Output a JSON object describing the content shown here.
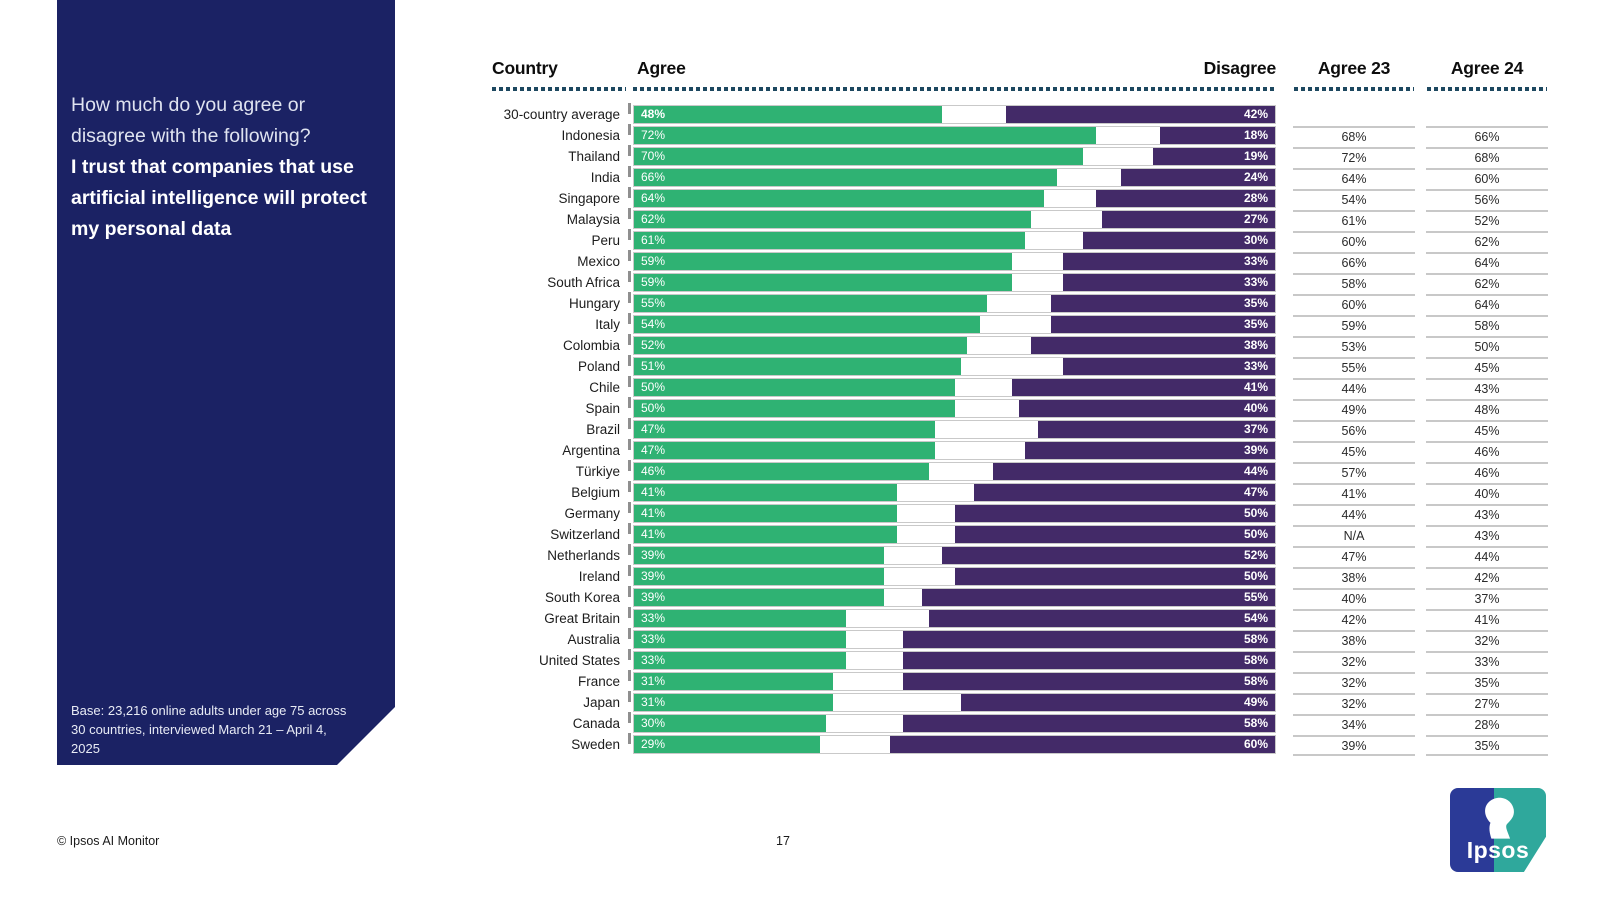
{
  "sidebar": {
    "question_intro": "How much do you agree or disagree with the following?",
    "question_bold": "I trust that companies that use artificial intelligence will protect my personal data",
    "base_note": "Base: 23,216 online adults under age 75 across 30 countries, interviewed March 21 – April 4, 2025"
  },
  "footer": {
    "copyright": "© Ipsos AI Monitor",
    "page_number": "17",
    "logo_text": "Ipsos"
  },
  "table_headers": {
    "country": "Country",
    "agree": "Agree",
    "disagree": "Disagree",
    "agree23": "Agree 23",
    "agree24": "Agree 24"
  },
  "colors": {
    "agree_green": "#2fb273",
    "disagree_purple": "#432a68",
    "sidebar_navy": "#1b2264"
  },
  "chart_data": {
    "type": "bar",
    "orientation": "horizontal-diverging",
    "title": "I trust that companies that use artificial intelligence will protect my personal data",
    "subtitle": "How much do you agree or disagree with the following?",
    "xlim": [
      0,
      100
    ],
    "units": "%",
    "legend_position": "column-headers",
    "categories": [
      "30-country average",
      "Indonesia",
      "Thailand",
      "India",
      "Singapore",
      "Malaysia",
      "Peru",
      "Mexico",
      "South Africa",
      "Hungary",
      "Italy",
      "Colombia",
      "Poland",
      "Chile",
      "Spain",
      "Brazil",
      "Argentina",
      "Türkiye",
      "Belgium",
      "Germany",
      "Switzerland",
      "Netherlands",
      "Ireland",
      "South Korea",
      "Great Britain",
      "Australia",
      "United States",
      "France",
      "Japan",
      "Canada",
      "Sweden"
    ],
    "series": [
      {
        "name": "Agree",
        "values": [
          48,
          72,
          70,
          66,
          64,
          62,
          61,
          59,
          59,
          55,
          54,
          52,
          51,
          50,
          50,
          47,
          47,
          46,
          41,
          41,
          41,
          39,
          39,
          39,
          33,
          33,
          33,
          31,
          31,
          30,
          29
        ]
      },
      {
        "name": "Disagree",
        "values": [
          42,
          18,
          19,
          24,
          28,
          27,
          30,
          33,
          33,
          35,
          35,
          38,
          33,
          41,
          40,
          37,
          39,
          44,
          47,
          50,
          50,
          52,
          50,
          55,
          54,
          58,
          58,
          58,
          49,
          58,
          60
        ]
      },
      {
        "name": "Agree 23",
        "values": [
          "",
          "68%",
          "72%",
          "64%",
          "54%",
          "61%",
          "60%",
          "66%",
          "58%",
          "60%",
          "59%",
          "53%",
          "55%",
          "44%",
          "49%",
          "56%",
          "45%",
          "57%",
          "41%",
          "44%",
          "N/A",
          "47%",
          "38%",
          "40%",
          "42%",
          "38%",
          "32%",
          "32%",
          "32%",
          "34%",
          "39%"
        ]
      },
      {
        "name": "Agree 24",
        "values": [
          "",
          "66%",
          "68%",
          "60%",
          "56%",
          "52%",
          "62%",
          "64%",
          "62%",
          "64%",
          "58%",
          "50%",
          "45%",
          "43%",
          "48%",
          "45%",
          "46%",
          "46%",
          "40%",
          "43%",
          "43%",
          "44%",
          "42%",
          "37%",
          "41%",
          "32%",
          "33%",
          "35%",
          "27%",
          "28%",
          "35%"
        ]
      }
    ]
  }
}
